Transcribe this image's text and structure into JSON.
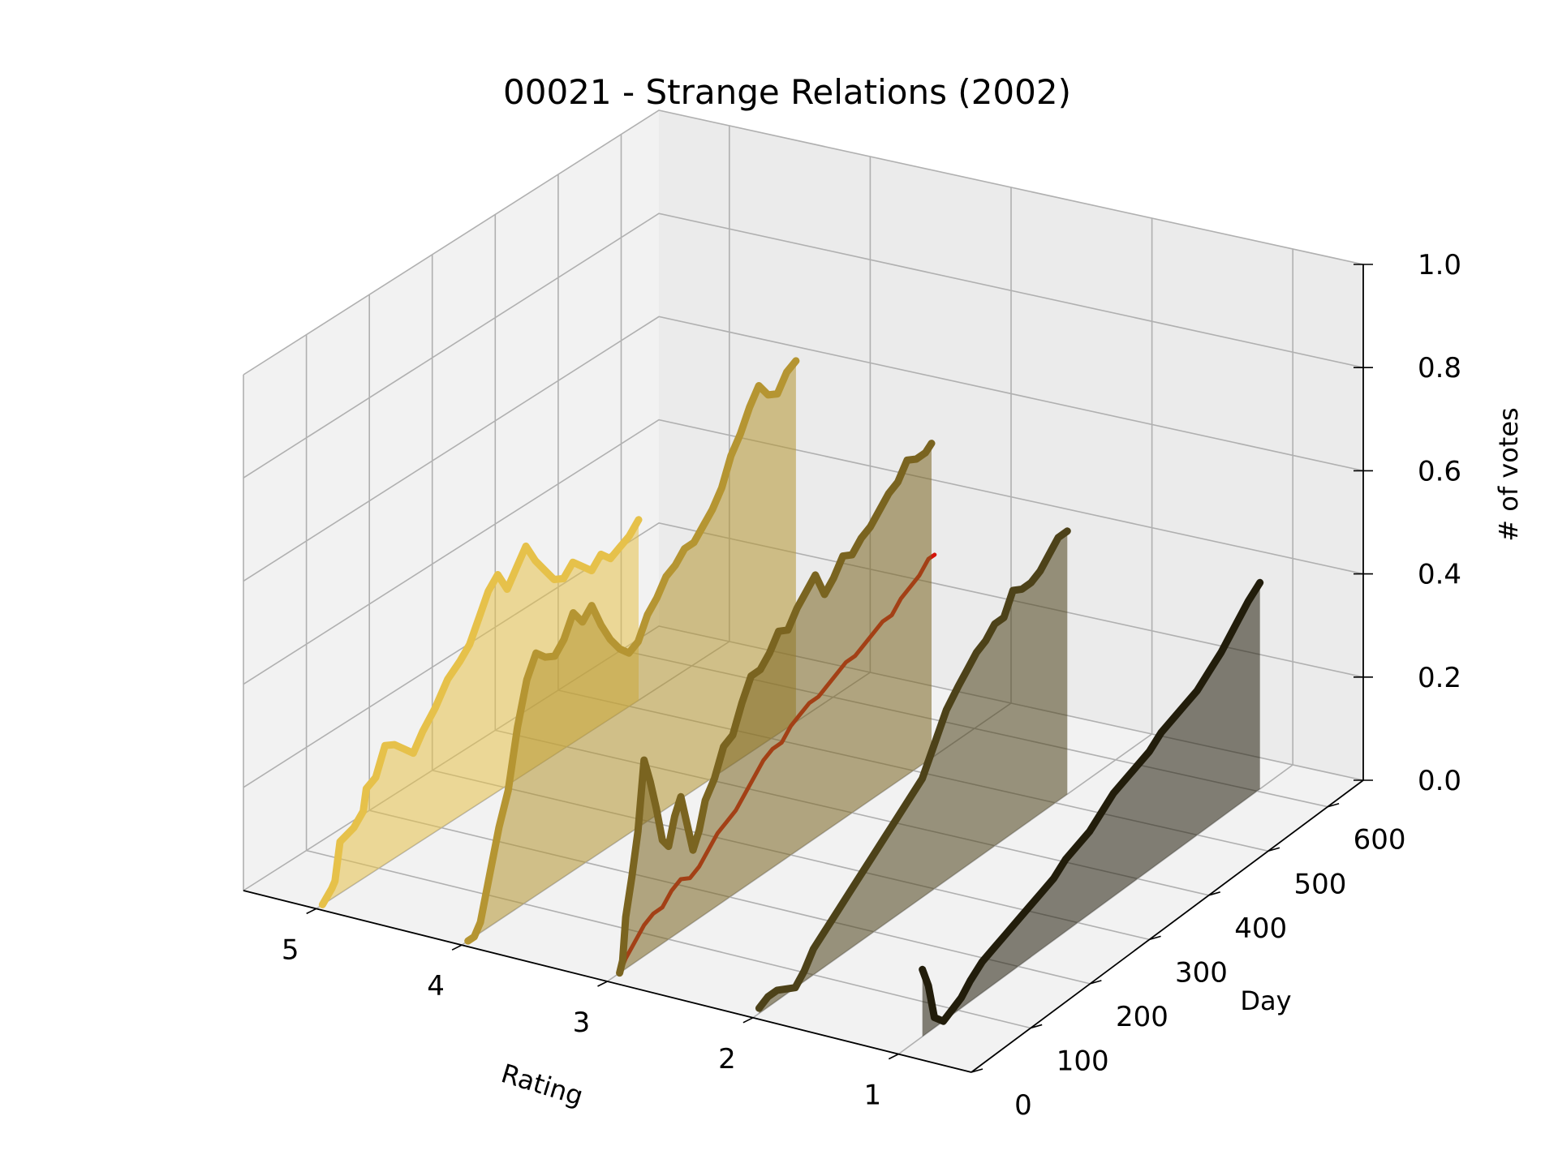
{
  "chart_data": {
    "type": "line",
    "projection": "3d",
    "title": "00021 - Strange Relations (2002)",
    "xlabel": "Rating",
    "ylabel": "Day",
    "zlabel": "# of votes",
    "x_ticks": [
      "5",
      "4",
      "3",
      "2",
      "1"
    ],
    "y_ticks": [
      "0",
      "100",
      "200",
      "300",
      "400",
      "500",
      "600"
    ],
    "z_ticks": [
      "0.0",
      "0.2",
      "0.4",
      "0.6",
      "0.8",
      "1.0"
    ],
    "xlim": [
      0.5,
      5.5
    ],
    "ylim": [
      0,
      660
    ],
    "zlim": [
      0,
      1
    ],
    "grid": true,
    "series": [
      {
        "rating": 5,
        "color": "#e6c14a",
        "fill": true,
        "points": [
          [
            10,
            0.0
          ],
          [
            25,
            0.02
          ],
          [
            30,
            0.03
          ],
          [
            38,
            0.1
          ],
          [
            60,
            0.11
          ],
          [
            75,
            0.13
          ],
          [
            80,
            0.17
          ],
          [
            95,
            0.18
          ],
          [
            110,
            0.23
          ],
          [
            125,
            0.22
          ],
          [
            140,
            0.2
          ],
          [
            155,
            0.18
          ],
          [
            170,
            0.21
          ],
          [
            190,
            0.24
          ],
          [
            210,
            0.28
          ],
          [
            230,
            0.3
          ],
          [
            245,
            0.32
          ],
          [
            260,
            0.36
          ],
          [
            275,
            0.4
          ],
          [
            290,
            0.42
          ],
          [
            305,
            0.38
          ],
          [
            320,
            0.41
          ],
          [
            335,
            0.44
          ],
          [
            350,
            0.4
          ],
          [
            365,
            0.37
          ],
          [
            380,
            0.34
          ],
          [
            395,
            0.33
          ],
          [
            410,
            0.35
          ],
          [
            425,
            0.33
          ],
          [
            440,
            0.31
          ],
          [
            455,
            0.33
          ],
          [
            470,
            0.31
          ],
          [
            485,
            0.32
          ],
          [
            500,
            0.33
          ],
          [
            515,
            0.35
          ]
        ]
      },
      {
        "rating": 4,
        "color": "#b59532",
        "fill": true,
        "points": [
          [
            10,
            0.0
          ],
          [
            20,
            0.0
          ],
          [
            30,
            0.02
          ],
          [
            45,
            0.1
          ],
          [
            60,
            0.18
          ],
          [
            75,
            0.24
          ],
          [
            90,
            0.35
          ],
          [
            105,
            0.43
          ],
          [
            120,
            0.47
          ],
          [
            135,
            0.45
          ],
          [
            150,
            0.44
          ],
          [
            165,
            0.46
          ],
          [
            180,
            0.5
          ],
          [
            195,
            0.47
          ],
          [
            210,
            0.49
          ],
          [
            225,
            0.44
          ],
          [
            240,
            0.4
          ],
          [
            255,
            0.37
          ],
          [
            270,
            0.35
          ],
          [
            285,
            0.36
          ],
          [
            300,
            0.4
          ],
          [
            315,
            0.42
          ],
          [
            330,
            0.45
          ],
          [
            345,
            0.46
          ],
          [
            360,
            0.48
          ],
          [
            375,
            0.48
          ],
          [
            390,
            0.5
          ],
          [
            405,
            0.52
          ],
          [
            420,
            0.55
          ],
          [
            435,
            0.6
          ],
          [
            450,
            0.63
          ],
          [
            465,
            0.67
          ],
          [
            480,
            0.7
          ],
          [
            495,
            0.67
          ],
          [
            510,
            0.66
          ],
          [
            525,
            0.69
          ],
          [
            540,
            0.7
          ]
        ]
      },
      {
        "rating": 3,
        "color": "#d4140a",
        "fill": false,
        "points": [
          [
            20,
            0.0
          ],
          [
            30,
            0.02
          ],
          [
            45,
            0.04
          ],
          [
            60,
            0.06
          ],
          [
            75,
            0.07
          ],
          [
            90,
            0.07
          ],
          [
            105,
            0.09
          ],
          [
            120,
            0.1
          ],
          [
            135,
            0.09
          ],
          [
            150,
            0.1
          ],
          [
            165,
            0.12
          ],
          [
            180,
            0.14
          ],
          [
            195,
            0.15
          ],
          [
            210,
            0.16
          ],
          [
            225,
            0.18
          ],
          [
            240,
            0.2
          ],
          [
            255,
            0.22
          ],
          [
            270,
            0.23
          ],
          [
            285,
            0.23
          ],
          [
            300,
            0.25
          ],
          [
            315,
            0.26
          ],
          [
            330,
            0.27
          ],
          [
            345,
            0.27
          ],
          [
            360,
            0.28
          ],
          [
            375,
            0.29
          ],
          [
            390,
            0.3
          ],
          [
            405,
            0.3
          ],
          [
            420,
            0.31
          ],
          [
            435,
            0.32
          ],
          [
            450,
            0.33
          ],
          [
            465,
            0.33
          ],
          [
            480,
            0.35
          ],
          [
            495,
            0.36
          ],
          [
            510,
            0.37
          ],
          [
            525,
            0.39
          ],
          [
            535,
            0.39
          ]
        ]
      },
      {
        "rating": 3,
        "color": "#7a6420",
        "fill": true,
        "points": [
          [
            20,
            0.0
          ],
          [
            25,
            0.02
          ],
          [
            30,
            0.1
          ],
          [
            40,
            0.17
          ],
          [
            50,
            0.25
          ],
          [
            60,
            0.38
          ],
          [
            70,
            0.33
          ],
          [
            80,
            0.27
          ],
          [
            90,
            0.2
          ],
          [
            100,
            0.18
          ],
          [
            110,
            0.23
          ],
          [
            120,
            0.26
          ],
          [
            130,
            0.2
          ],
          [
            140,
            0.14
          ],
          [
            150,
            0.17
          ],
          [
            160,
            0.22
          ],
          [
            175,
            0.25
          ],
          [
            190,
            0.3
          ],
          [
            205,
            0.31
          ],
          [
            220,
            0.36
          ],
          [
            235,
            0.4
          ],
          [
            250,
            0.4
          ],
          [
            265,
            0.42
          ],
          [
            280,
            0.45
          ],
          [
            295,
            0.44
          ],
          [
            310,
            0.47
          ],
          [
            325,
            0.49
          ],
          [
            340,
            0.51
          ],
          [
            355,
            0.46
          ],
          [
            370,
            0.48
          ],
          [
            385,
            0.51
          ],
          [
            400,
            0.5
          ],
          [
            415,
            0.52
          ],
          [
            430,
            0.53
          ],
          [
            445,
            0.55
          ],
          [
            460,
            0.57
          ],
          [
            475,
            0.58
          ],
          [
            490,
            0.61
          ],
          [
            505,
            0.6
          ],
          [
            520,
            0.6
          ],
          [
            530,
            0.61
          ]
        ]
      },
      {
        "rating": 2,
        "color": "#4d4219",
        "fill": true,
        "points": [
          [
            10,
            0.01
          ],
          [
            25,
            0.02
          ],
          [
            40,
            0.02
          ],
          [
            55,
            0.01
          ],
          [
            70,
            0.0
          ],
          [
            85,
            0.02
          ],
          [
            100,
            0.05
          ],
          [
            120,
            0.07
          ],
          [
            140,
            0.09
          ],
          [
            160,
            0.11
          ],
          [
            180,
            0.13
          ],
          [
            200,
            0.15
          ],
          [
            220,
            0.17
          ],
          [
            240,
            0.19
          ],
          [
            260,
            0.21
          ],
          [
            280,
            0.23
          ],
          [
            300,
            0.28
          ],
          [
            320,
            0.33
          ],
          [
            340,
            0.36
          ],
          [
            355,
            0.38
          ],
          [
            370,
            0.4
          ],
          [
            385,
            0.41
          ],
          [
            400,
            0.43
          ],
          [
            415,
            0.43
          ],
          [
            430,
            0.47
          ],
          [
            445,
            0.46
          ],
          [
            460,
            0.46
          ],
          [
            475,
            0.47
          ],
          [
            490,
            0.49
          ],
          [
            505,
            0.51
          ],
          [
            520,
            0.51
          ]
        ]
      },
      {
        "rating": 1,
        "color": "#221d0b",
        "fill": true,
        "points": [
          [
            40,
            0.13
          ],
          [
            50,
            0.09
          ],
          [
            60,
            0.02
          ],
          [
            75,
            0.0
          ],
          [
            90,
            0.01
          ],
          [
            105,
            0.02
          ],
          [
            120,
            0.04
          ],
          [
            140,
            0.06
          ],
          [
            160,
            0.07
          ],
          [
            180,
            0.08
          ],
          [
            200,
            0.09
          ],
          [
            220,
            0.1
          ],
          [
            240,
            0.11
          ],
          [
            260,
            0.12
          ],
          [
            280,
            0.14
          ],
          [
            300,
            0.15
          ],
          [
            320,
            0.16
          ],
          [
            340,
            0.18
          ],
          [
            360,
            0.2
          ],
          [
            380,
            0.21
          ],
          [
            400,
            0.22
          ],
          [
            420,
            0.23
          ],
          [
            440,
            0.25
          ],
          [
            460,
            0.26
          ],
          [
            480,
            0.27
          ],
          [
            500,
            0.28
          ],
          [
            520,
            0.3
          ],
          [
            540,
            0.32
          ],
          [
            555,
            0.34
          ],
          [
            570,
            0.36
          ],
          [
            585,
            0.38
          ],
          [
            595,
            0.39
          ],
          [
            605,
            0.4
          ]
        ]
      }
    ]
  }
}
